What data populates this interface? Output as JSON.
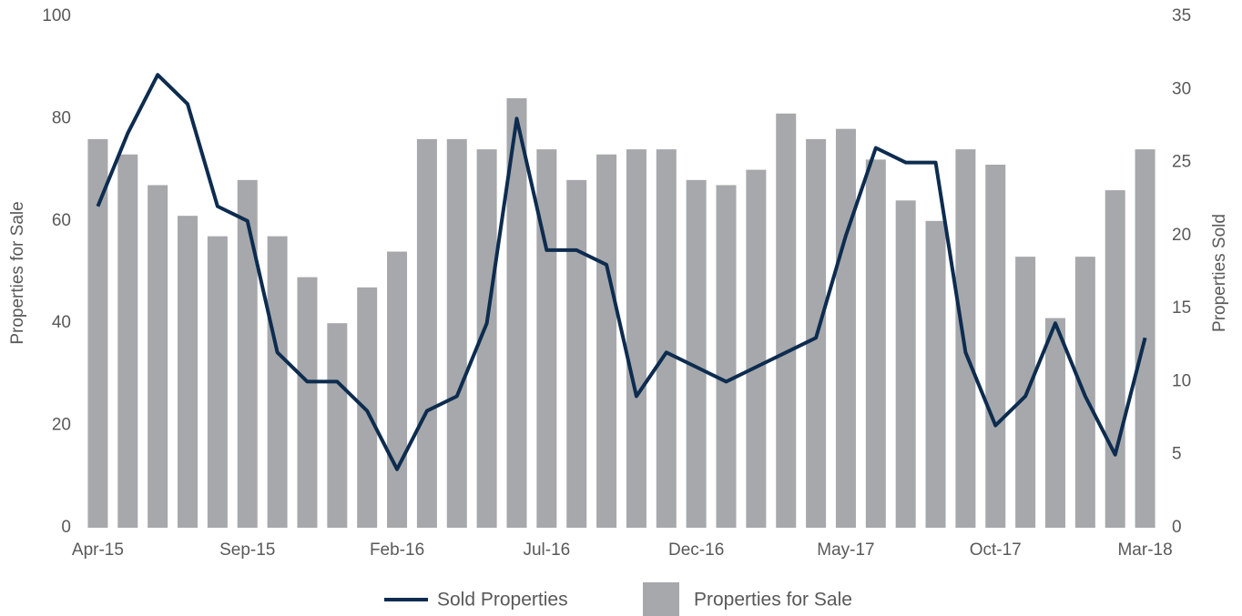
{
  "chart_data": {
    "type": "bar-line",
    "categories": [
      "Apr-15",
      null,
      null,
      null,
      null,
      "Sep-15",
      null,
      null,
      null,
      null,
      "Feb-16",
      null,
      null,
      null,
      null,
      "Jul-16",
      null,
      null,
      null,
      null,
      "Dec-16",
      null,
      null,
      null,
      null,
      "May-17",
      null,
      null,
      null,
      null,
      "Oct-17",
      null,
      null,
      null,
      null,
      "Mar-18"
    ],
    "series": [
      {
        "name": "Properties for Sale",
        "type": "bar",
        "axis": "y",
        "color": "#a6a8ab",
        "values": [
          76,
          73,
          67,
          61,
          57,
          68,
          57,
          49,
          40,
          47,
          54,
          76,
          76,
          74,
          84,
          74,
          68,
          73,
          74,
          74,
          68,
          67,
          70,
          81,
          76,
          78,
          72,
          64,
          60,
          74,
          71,
          53,
          41,
          53,
          66,
          74
        ]
      },
      {
        "name": "Sold Properties",
        "type": "line",
        "axis": "y2",
        "color": "#0d2c4f",
        "values": [
          22,
          27,
          31,
          29,
          22,
          21,
          12,
          10,
          10,
          8,
          4,
          8,
          9,
          14,
          28,
          19,
          19,
          18,
          9,
          12,
          11,
          10,
          11,
          12,
          13,
          20,
          26,
          25,
          25,
          12,
          7,
          9,
          14,
          9,
          5,
          13
        ]
      }
    ],
    "y_label": "Properties for Sale",
    "y2_label": "Properties Sold",
    "ylim": [
      0,
      100
    ],
    "yticks": [
      0,
      20,
      40,
      60,
      80,
      100
    ],
    "y2lim": [
      0,
      35
    ],
    "y2ticks": [
      0,
      5,
      10,
      15,
      20,
      25,
      30,
      35
    ],
    "legend": "bottom"
  }
}
